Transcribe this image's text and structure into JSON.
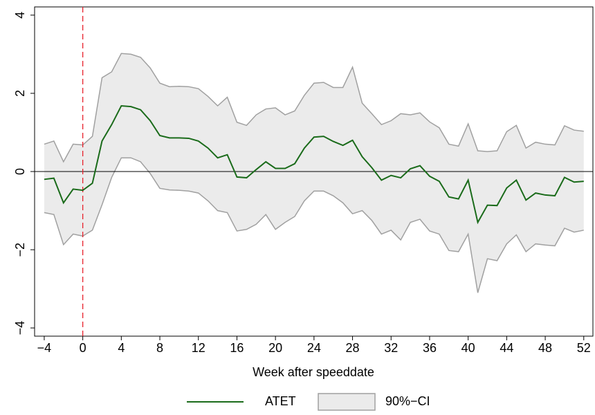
{
  "chart_data": {
    "type": "line",
    "x_label": "Week after speeddate",
    "xlim": [
      -5,
      52.95
    ],
    "ylim": [
      -4.21,
      4.21
    ],
    "xticks": [
      {
        "value": -4,
        "label": "−4"
      },
      0,
      4,
      8,
      12,
      16,
      20,
      24,
      28,
      32,
      36,
      40,
      44,
      48,
      52
    ],
    "yticks": [
      {
        "value": -4,
        "label": "−4"
      },
      {
        "value": -2,
        "label": "−2"
      },
      0,
      2,
      4
    ],
    "reference_lines": {
      "y": 0,
      "y_color": "#000000",
      "x": 0,
      "x_color": "#e8202a"
    },
    "x": [
      -4,
      -3,
      -2,
      -1,
      0,
      1,
      2,
      3,
      4,
      5,
      6,
      7,
      8,
      9,
      10,
      11,
      12,
      13,
      14,
      15,
      16,
      17,
      18,
      19,
      20,
      21,
      22,
      23,
      24,
      25,
      26,
      27,
      28,
      29,
      30,
      31,
      32,
      33,
      34,
      35,
      36,
      37,
      38,
      39,
      40,
      41,
      42,
      43,
      44,
      45,
      46,
      47,
      48,
      49,
      50,
      51,
      52
    ],
    "series": [
      {
        "name": "ATET",
        "color": "#1a6b1a",
        "values": [
          -0.2,
          -0.17,
          -0.8,
          -0.45,
          -0.48,
          -0.3,
          0.78,
          1.2,
          1.68,
          1.66,
          1.58,
          1.3,
          0.92,
          0.86,
          0.86,
          0.85,
          0.78,
          0.6,
          0.35,
          0.43,
          -0.14,
          -0.16,
          0.05,
          0.25,
          0.08,
          0.08,
          0.2,
          0.6,
          0.88,
          0.9,
          0.77,
          0.67,
          0.8,
          0.38,
          0.1,
          -0.22,
          -0.1,
          -0.16,
          0.07,
          0.15,
          -0.12,
          -0.25,
          -0.65,
          -0.7,
          -0.22,
          -1.3,
          -0.86,
          -0.87,
          -0.42,
          -0.22,
          -0.73,
          -0.55,
          -0.6,
          -0.62,
          -0.15,
          -0.27,
          -0.25
        ]
      },
      {
        "name": "90%−CI",
        "type": "band",
        "color": "#ebebeb",
        "edge_color": "#a0a0a0",
        "upper": [
          0.7,
          0.78,
          0.25,
          0.7,
          0.68,
          0.9,
          2.4,
          2.55,
          3.02,
          3.0,
          2.92,
          2.65,
          2.26,
          2.17,
          2.18,
          2.17,
          2.12,
          1.92,
          1.68,
          1.9,
          1.26,
          1.18,
          1.45,
          1.6,
          1.63,
          1.45,
          1.55,
          1.95,
          2.26,
          2.28,
          2.15,
          2.15,
          2.67,
          1.75,
          1.48,
          1.2,
          1.3,
          1.48,
          1.45,
          1.5,
          1.27,
          1.12,
          0.7,
          0.65,
          1.22,
          0.53,
          0.51,
          0.53,
          1.02,
          1.18,
          0.6,
          0.75,
          0.7,
          0.68,
          1.17,
          1.06,
          1.03
        ],
        "lower": [
          -1.05,
          -1.1,
          -1.87,
          -1.6,
          -1.65,
          -1.5,
          -0.85,
          -0.15,
          0.35,
          0.35,
          0.25,
          -0.05,
          -0.43,
          -0.47,
          -0.48,
          -0.5,
          -0.55,
          -0.75,
          -1.0,
          -1.05,
          -1.52,
          -1.48,
          -1.35,
          -1.1,
          -1.48,
          -1.3,
          -1.15,
          -0.75,
          -0.5,
          -0.5,
          -0.62,
          -0.8,
          -1.08,
          -1.0,
          -1.25,
          -1.6,
          -1.5,
          -1.75,
          -1.3,
          -1.22,
          -1.52,
          -1.6,
          -2.02,
          -2.05,
          -1.6,
          -3.1,
          -2.23,
          -2.28,
          -1.85,
          -1.62,
          -2.05,
          -1.85,
          -1.88,
          -1.9,
          -1.45,
          -1.55,
          -1.5
        ]
      }
    ]
  }
}
